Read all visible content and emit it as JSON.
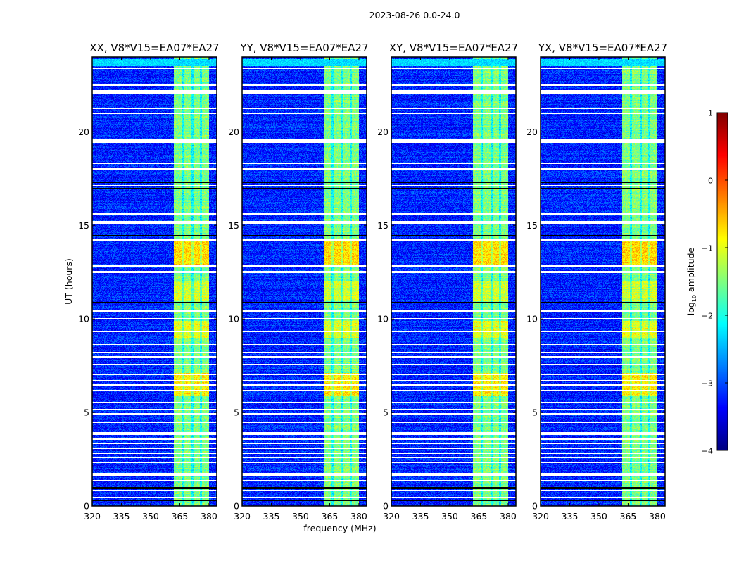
{
  "chart_data": {
    "type": "heatmap",
    "suptitle": "2023-08-26 0.0-24.0",
    "panels": [
      {
        "title": "XX, V8*V15=EA07*EA27",
        "seed": 11
      },
      {
        "title": "YY, V8*V15=EA07*EA27",
        "seed": 23
      },
      {
        "title": "XY, V8*V15=EA07*EA27",
        "seed": 37
      },
      {
        "title": "YX, V8*V15=EA07*EA27",
        "seed": 51
      }
    ],
    "xlabel": "frequency (MHz)",
    "ylabel": "UT (hours)",
    "xlim": [
      320,
      384
    ],
    "ylim": [
      0,
      24
    ],
    "xticks": [
      320,
      335,
      350,
      365,
      380
    ],
    "xtick_labels": [
      "320",
      "335",
      "350",
      "365",
      "380"
    ],
    "yticks": [
      0,
      5,
      10,
      15,
      20
    ],
    "ytick_labels": [
      "0",
      "5",
      "10",
      "15",
      "20"
    ],
    "colorbar": {
      "label_prefix": "log",
      "label_sub": "10",
      "label_suffix": " amplitude",
      "range": [
        -4,
        1
      ],
      "ticks": [
        -4,
        -3,
        -2,
        -1,
        0,
        1
      ],
      "tick_labels": [
        "−4",
        "−3",
        "−2",
        "−1",
        "0",
        "1"
      ],
      "colormap": "jet"
    },
    "background_level": -3.2,
    "rfi_band": {
      "start_mhz": 362,
      "end_mhz": 380,
      "level": -1.5
    },
    "sub_band_gaps_mhz": [
      366.6,
      371.6,
      376.0
    ],
    "bright_periods": [
      {
        "start_h": 12.9,
        "end_h": 14.2,
        "level": -0.7
      },
      {
        "start_h": 5.9,
        "end_h": 7.1,
        "level": -0.8
      },
      {
        "start_h": 9.0,
        "end_h": 9.9,
        "level": -1.0
      },
      {
        "start_h": 11.0,
        "end_h": 12.0,
        "level": -1.1
      }
    ],
    "flagged_white_hours": [
      [
        23.35,
        23.45
      ],
      [
        22.45,
        22.55
      ],
      [
        22.0,
        22.25
      ],
      [
        21.2,
        21.25
      ],
      [
        20.95,
        21.0
      ],
      [
        19.4,
        19.65
      ],
      [
        18.3,
        18.35
      ],
      [
        17.95,
        18.05
      ],
      [
        17.1,
        17.15
      ],
      [
        15.55,
        15.65
      ],
      [
        15.05,
        15.25
      ],
      [
        14.15,
        14.3
      ],
      [
        12.8,
        12.85
      ],
      [
        12.45,
        12.55
      ],
      [
        10.35,
        10.5
      ],
      [
        10.0,
        10.05
      ],
      [
        9.3,
        9.35
      ],
      [
        8.6,
        8.65
      ],
      [
        8.2,
        8.25
      ],
      [
        7.9,
        8.0
      ],
      [
        7.55,
        7.6
      ],
      [
        7.3,
        7.35
      ],
      [
        7.0,
        7.05
      ],
      [
        6.7,
        6.75
      ],
      [
        6.45,
        6.5
      ],
      [
        6.15,
        6.2
      ],
      [
        5.5,
        5.55
      ],
      [
        5.15,
        5.2
      ],
      [
        4.9,
        4.95
      ],
      [
        4.45,
        4.5
      ],
      [
        3.8,
        3.95
      ],
      [
        3.55,
        3.6
      ],
      [
        3.3,
        3.35
      ],
      [
        3.05,
        3.1
      ],
      [
        2.8,
        2.85
      ],
      [
        2.55,
        2.6
      ],
      [
        2.3,
        2.35
      ],
      [
        1.6,
        1.75
      ],
      [
        1.35,
        1.4
      ],
      [
        0.8,
        0.85
      ],
      [
        0.45,
        0.5
      ]
    ],
    "flagged_black_hours": [
      [
        17.25,
        17.35
      ],
      [
        16.95,
        17.0
      ],
      [
        14.45,
        14.5
      ],
      [
        10.85,
        10.9
      ],
      [
        9.55,
        9.6
      ],
      [
        1.95,
        2.0
      ],
      [
        0.9,
        1.0
      ],
      [
        0.25,
        0.3
      ]
    ]
  }
}
